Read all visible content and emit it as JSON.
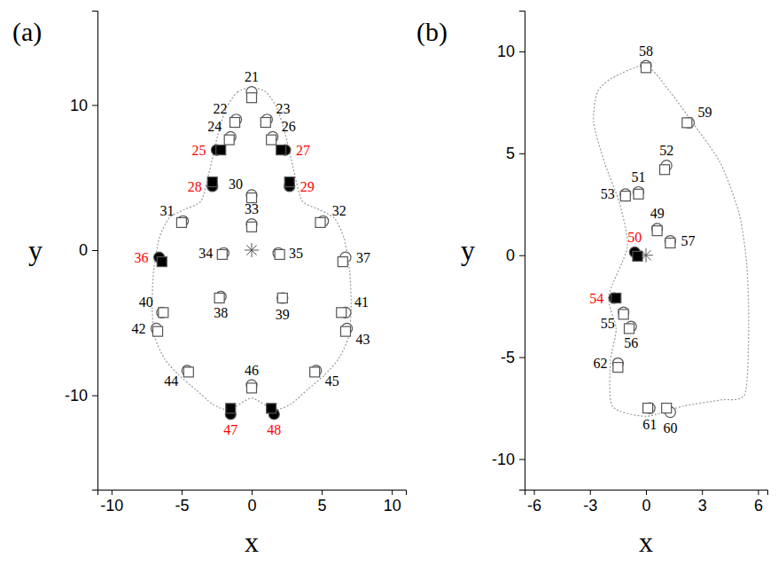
{
  "chart_data": [
    {
      "type": "scatter",
      "title": "(a)",
      "x_label": "x",
      "y_label": "y",
      "xlim": [
        -11,
        11
      ],
      "ylim": [
        -16.5,
        16.5
      ],
      "xticks": [
        -10,
        -5,
        0,
        5,
        10
      ],
      "yticks": [
        -10,
        0,
        10
      ],
      "series": [
        {
          "marker": "circle",
          "x": [
            0,
            -1.1,
            1.1,
            -1.5,
            -2.5,
            1.5,
            2.4,
            -2.8,
            2.7,
            0,
            -4.9,
            5.1,
            0,
            -2.0,
            1.9,
            -6.6,
            6.7,
            -2.2,
            2.2,
            -6.4,
            6.7,
            -6.8,
            6.8,
            -4.6,
            4.6,
            0,
            -1.5,
            1.6
          ],
          "values": [
            10.9,
            9.0,
            9.0,
            7.8,
            6.9,
            7.8,
            6.9,
            4.4,
            4.4,
            3.8,
            2.0,
            2.0,
            1.8,
            -0.2,
            -0.2,
            -0.5,
            -0.5,
            -3.2,
            -3.3,
            -4.3,
            -4.3,
            -5.4,
            -5.4,
            -8.3,
            -8.3,
            -9.3,
            -11.3,
            -11.3
          ],
          "colors": [
            "#ffffff",
            "#ffffff",
            "#ffffff",
            "#ffffff",
            "#000000",
            "#ffffff",
            "#000000",
            "#000000",
            "#000000",
            "#ffffff",
            "#ffffff",
            "#ffffff",
            "#ffffff",
            "#ffffff",
            "#ffffff",
            "#000000",
            "#ffffff",
            "#ffffff",
            "#ffffff",
            "#ffffff",
            "#ffffff",
            "#ffffff",
            "#ffffff",
            "#ffffff",
            "#ffffff",
            "#ffffff",
            "#000000",
            "#000000"
          ]
        },
        {
          "marker": "square",
          "x": [
            0,
            -1.2,
            1.0,
            -1.6,
            -2.2,
            1.4,
            2.1,
            -2.8,
            2.7,
            0,
            -5.0,
            4.9,
            0,
            -2.1,
            2.0,
            -6.4,
            6.5,
            -2.3,
            2.2,
            -6.3,
            6.4,
            -6.7,
            6.7,
            -4.5,
            4.5,
            0,
            -1.5,
            1.4
          ],
          "values": [
            10.5,
            8.8,
            8.8,
            7.6,
            6.9,
            7.6,
            6.9,
            4.7,
            4.7,
            3.6,
            1.9,
            1.9,
            1.6,
            -0.3,
            -0.3,
            -0.8,
            -0.8,
            -3.3,
            -3.3,
            -4.3,
            -4.3,
            -5.6,
            -5.6,
            -8.4,
            -8.4,
            -9.5,
            -10.9,
            -10.9
          ],
          "colors": [
            "#ffffff",
            "#ffffff",
            "#ffffff",
            "#ffffff",
            "#000000",
            "#ffffff",
            "#000000",
            "#000000",
            "#000000",
            "#ffffff",
            "#ffffff",
            "#ffffff",
            "#ffffff",
            "#ffffff",
            "#ffffff",
            "#000000",
            "#ffffff",
            "#ffffff",
            "#ffffff",
            "#ffffff",
            "#ffffff",
            "#ffffff",
            "#ffffff",
            "#ffffff",
            "#ffffff",
            "#ffffff",
            "#000000",
            "#000000"
          ]
        }
      ],
      "point_labels": [
        "21",
        "22",
        "23",
        "24",
        "25",
        "26",
        "27",
        "28",
        "29",
        "30",
        "31",
        "32",
        "33",
        "34",
        "35",
        "36",
        "37",
        "38",
        "39",
        "40",
        "41",
        "42",
        "43",
        "44",
        "45",
        "46",
        "47",
        "48"
      ],
      "label_colors": [
        "black",
        "black",
        "black",
        "black",
        "red",
        "black",
        "red",
        "red",
        "red",
        "black",
        "black",
        "black",
        "black",
        "black",
        "black",
        "red",
        "black",
        "black",
        "black",
        "black",
        "black",
        "black",
        "black",
        "black",
        "black",
        "black",
        "red",
        "red"
      ],
      "centroid": {
        "x": 0,
        "y": 0,
        "marker": "asterisk"
      },
      "outline": {
        "x": [
          0,
          -1.0,
          -1.8,
          -2.4,
          -3.0,
          -3.6,
          -4.8,
          -5.9,
          -6.6,
          -7.0,
          -7.1,
          -6.9,
          -6.2,
          -5.2,
          -4.0,
          -2.8,
          -1.6,
          0,
          1.6,
          2.8,
          4.0,
          5.2,
          6.2,
          6.9,
          7.1,
          7.0,
          6.6,
          5.9,
          4.8,
          3.6,
          3.0,
          2.4,
          1.8,
          1.0
        ],
        "y": [
          11.2,
          10.9,
          9.8,
          8.0,
          5.5,
          3.4,
          2.8,
          2.2,
          0.8,
          -1.5,
          -4.0,
          -6.0,
          -7.5,
          -8.6,
          -9.6,
          -10.6,
          -11.0,
          -10.2,
          -11.0,
          -10.6,
          -9.6,
          -8.6,
          -7.5,
          -6.0,
          -4.0,
          -1.5,
          0.8,
          2.2,
          2.8,
          3.4,
          5.5,
          8.0,
          9.8,
          10.9
        ]
      }
    },
    {
      "type": "scatter",
      "title": "(b)",
      "x_label": "x",
      "y_label": "y",
      "xlim": [
        -6.5,
        6.5
      ],
      "ylim": [
        -11.5,
        12
      ],
      "xticks": [
        -6,
        -3,
        0,
        3,
        6
      ],
      "yticks": [
        -10,
        -5,
        0,
        5,
        10
      ],
      "series": [
        {
          "marker": "circle",
          "x": [
            0.6,
            -0.6,
            -0.4,
            1.1,
            -1.1,
            -1.7,
            -1.2,
            -0.8,
            1.3,
            0.0,
            2.3,
            1.3,
            0.2,
            -1.5
          ],
          "values": [
            1.3,
            0.15,
            3.1,
            4.4,
            3.0,
            -2.1,
            -2.8,
            -3.5,
            0.7,
            9.3,
            6.5,
            -7.7,
            -7.5,
            -5.3
          ],
          "colors": [
            "#ffffff",
            "#000000",
            "#ffffff",
            "#ffffff",
            "#ffffff",
            "#000000",
            "#ffffff",
            "#ffffff",
            "#ffffff",
            "#ffffff",
            "#ffffff",
            "#ffffff",
            "#ffffff",
            "#ffffff"
          ]
        },
        {
          "marker": "square",
          "x": [
            0.6,
            -0.45,
            -0.4,
            1.0,
            -1.1,
            -1.6,
            -1.2,
            -0.9,
            1.3,
            0.0,
            2.2,
            1.1,
            0.1,
            -1.5
          ],
          "values": [
            1.2,
            -0.05,
            3.0,
            4.2,
            2.9,
            -2.1,
            -2.9,
            -3.6,
            0.6,
            9.2,
            6.5,
            -7.5,
            -7.5,
            -5.5
          ],
          "colors": [
            "#ffffff",
            "#000000",
            "#ffffff",
            "#ffffff",
            "#ffffff",
            "#000000",
            "#ffffff",
            "#ffffff",
            "#ffffff",
            "#ffffff",
            "#ffffff",
            "#ffffff",
            "#ffffff",
            "#ffffff"
          ]
        }
      ],
      "point_labels": [
        "49",
        "50",
        "51",
        "52",
        "53",
        "54",
        "55",
        "56",
        "57",
        "58",
        "59",
        "60",
        "61",
        "62"
      ],
      "label_colors": [
        "black",
        "red",
        "black",
        "black",
        "black",
        "red",
        "black",
        "black",
        "black",
        "black",
        "black",
        "black",
        "black",
        "black"
      ],
      "centroid": {
        "x": 0,
        "y": 0,
        "marker": "asterisk"
      },
      "outline": {
        "x": [
          -1.8,
          0,
          1.3,
          2.5,
          4.0,
          5.0,
          5.4,
          5.5,
          5.3,
          4.0,
          2.0,
          0,
          -1.8,
          -1.9,
          -1.6,
          -2.0,
          -1.0,
          -1.4,
          -2.2,
          -2.8,
          -2.6
        ],
        "y": [
          8.7,
          9.3,
          8.0,
          6.5,
          4.5,
          2.0,
          -0.5,
          -3.5,
          -6.8,
          -7.1,
          -7.4,
          -7.9,
          -7.4,
          -5.2,
          -3.6,
          -2.0,
          0.4,
          2.5,
          4.5,
          6.5,
          8.0
        ]
      }
    }
  ]
}
